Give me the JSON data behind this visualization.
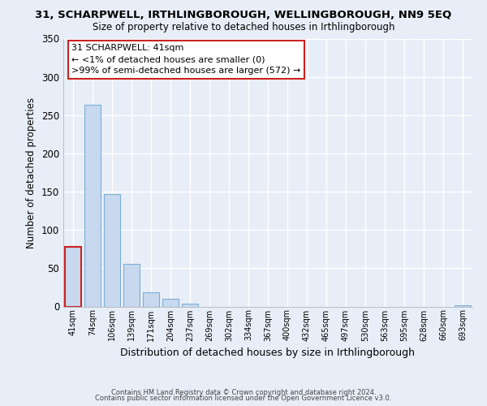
{
  "title_line1": "31, SCHARPWELL, IRTHLINGBOROUGH, WELLINGBOROUGH, NN9 5EQ",
  "title_line2": "Size of property relative to detached houses in Irthlingborough",
  "xlabel": "Distribution of detached houses by size in Irthlingborough",
  "ylabel": "Number of detached properties",
  "categories": [
    "41sqm",
    "74sqm",
    "106sqm",
    "139sqm",
    "171sqm",
    "204sqm",
    "237sqm",
    "269sqm",
    "302sqm",
    "334sqm",
    "367sqm",
    "400sqm",
    "432sqm",
    "465sqm",
    "497sqm",
    "530sqm",
    "563sqm",
    "595sqm",
    "628sqm",
    "660sqm",
    "693sqm"
  ],
  "values": [
    78,
    264,
    147,
    56,
    19,
    10,
    4,
    0,
    0,
    0,
    0,
    0,
    0,
    0,
    0,
    0,
    0,
    0,
    0,
    0,
    2
  ],
  "highlight_index": 0,
  "highlight_bar_color": "#c8d8ee",
  "highlight_edge_color": "#cc2222",
  "bar_color": "#c8d8ee",
  "bar_edge_color": "#7bafd4",
  "ylim": [
    0,
    350
  ],
  "yticks": [
    0,
    50,
    100,
    150,
    200,
    250,
    300,
    350
  ],
  "annotation_title": "31 SCHARPWELL: 41sqm",
  "annotation_line1": "← <1% of detached houses are smaller (0)",
  "annotation_line2": ">99% of semi-detached houses are larger (572) →",
  "footer_line1": "Contains HM Land Registry data © Crown copyright and database right 2024.",
  "footer_line2": "Contains public sector information licensed under the Open Government Licence v3.0.",
  "plot_bg_color": "#e8eef8",
  "fig_bg_color": "#e8eef8",
  "grid_color": "#ffffff"
}
